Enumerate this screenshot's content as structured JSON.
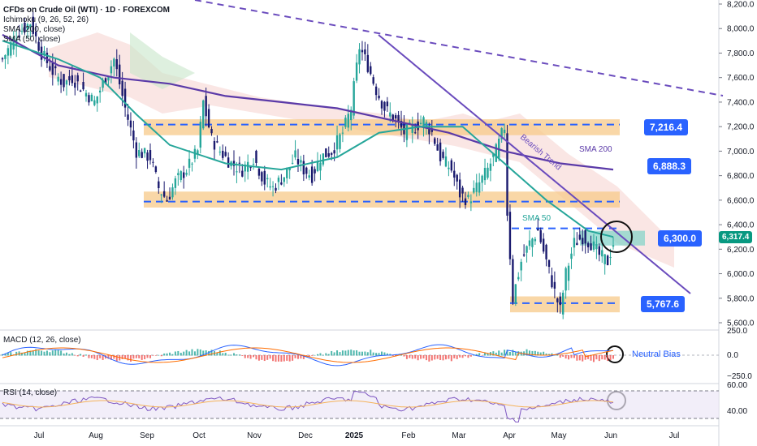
{
  "header": {
    "symbol_line": "CFDs on Crude Oil (WTI) · 1D · FOREXCOM",
    "ichimoku_label": "Ichimoku (9, 26, 52, 26)",
    "sma200_label": "SMA (200, close)",
    "sma50_label": "SMA (50, close)"
  },
  "colors": {
    "bull": "#26a69a",
    "bear": "#1a1a6e",
    "sma50": "#26a69a",
    "sma200": "#5b3aa8",
    "zone": "#f7c98a",
    "zone_dash": "#2962ff",
    "trend": "#6a4bbd",
    "tag_blue": "#2962ff",
    "current_price": "#089981",
    "macd_line": "#2962ff",
    "signal_line": "#ff6d00",
    "rsi_line": "#7e57c2"
  },
  "chart_data": {
    "type": "candlestick",
    "title": "CFDs on Crude Oil (WTI) · 1D · FOREXCOM",
    "y_range": [
      5600,
      8200
    ],
    "y_ticks": [
      "8,200.0",
      "8,000.0",
      "7,800.0",
      "7,600.0",
      "7,400.0",
      "7,200.0",
      "7,000.0",
      "6,800.0",
      "6,600.0",
      "6,400.0",
      "6,200.0",
      "6,000.0",
      "5,800.0",
      "5,600.0"
    ],
    "x_ticks": [
      "Jul",
      "Aug",
      "Sep",
      "Oct",
      "Nov",
      "Dec",
      "2025",
      "Feb",
      "Mar",
      "Apr",
      "May",
      "Jun",
      "Jul"
    ],
    "price_close_path": [
      [
        0,
        7750
      ],
      [
        5,
        7950
      ],
      [
        10,
        8050
      ],
      [
        14,
        7800
      ],
      [
        18,
        7650
      ],
      [
        22,
        7550
      ],
      [
        25,
        7600
      ],
      [
        29,
        7500
      ],
      [
        33,
        7400
      ],
      [
        37,
        7600
      ],
      [
        40,
        7750
      ],
      [
        44,
        7350
      ],
      [
        48,
        7000
      ],
      [
        53,
        6950
      ],
      [
        56,
        6700
      ],
      [
        59,
        6600
      ],
      [
        62,
        6750
      ],
      [
        66,
        6850
      ],
      [
        70,
        7000
      ],
      [
        72,
        7400
      ],
      [
        75,
        7100
      ],
      [
        78,
        7000
      ],
      [
        82,
        6900
      ],
      [
        86,
        6850
      ],
      [
        90,
        6950
      ],
      [
        94,
        6750
      ],
      [
        97,
        6700
      ],
      [
        101,
        6800
      ],
      [
        105,
        6950
      ],
      [
        108,
        6850
      ],
      [
        111,
        6800
      ],
      [
        114,
        6950
      ],
      [
        118,
        7000
      ],
      [
        122,
        7150
      ],
      [
        125,
        7350
      ],
      [
        128,
        7850
      ],
      [
        131,
        7700
      ],
      [
        134,
        7500
      ],
      [
        137,
        7350
      ],
      [
        141,
        7250
      ],
      [
        144,
        7150
      ],
      [
        148,
        7200
      ],
      [
        151,
        7250
      ],
      [
        154,
        7150
      ],
      [
        157,
        6950
      ],
      [
        161,
        6850
      ],
      [
        164,
        6650
      ],
      [
        167,
        6600
      ],
      [
        170,
        6700
      ],
      [
        174,
        6850
      ],
      [
        177,
        7000
      ],
      [
        180,
        7200
      ],
      [
        181,
        6500
      ],
      [
        183,
        5800
      ],
      [
        186,
        6100
      ],
      [
        189,
        6250
      ],
      [
        192,
        6350
      ],
      [
        195,
        6100
      ],
      [
        198,
        5850
      ],
      [
        200,
        5700
      ],
      [
        202,
        6000
      ],
      [
        205,
        6250
      ],
      [
        208,
        6300
      ],
      [
        211,
        6250
      ],
      [
        214,
        6150
      ],
      [
        217,
        6100
      ],
      [
        219,
        6250
      ]
    ],
    "horizontal_levels": [
      {
        "label": "7,216.4",
        "value": 7216.4
      },
      {
        "label": "6,888.3",
        "value": 6888.3
      },
      {
        "label": "6,300.0",
        "value": 6300.0
      },
      {
        "label": "5,767.6",
        "value": 5767.6
      }
    ],
    "current_price": {
      "label": "6,317.4",
      "value": 6317.4
    },
    "annotations": [
      "SMA 200",
      "SMA 50",
      "Bearish Trend"
    ],
    "sma200_path": [
      [
        0,
        7950
      ],
      [
        20,
        7700
      ],
      [
        40,
        7600
      ],
      [
        60,
        7550
      ],
      [
        80,
        7450
      ],
      [
        100,
        7400
      ],
      [
        120,
        7350
      ],
      [
        140,
        7250
      ],
      [
        160,
        7150
      ],
      [
        180,
        7000
      ],
      [
        200,
        6900
      ],
      [
        219,
        6850
      ]
    ],
    "sma50_path": [
      [
        0,
        7900
      ],
      [
        20,
        7750
      ],
      [
        35,
        7600
      ],
      [
        48,
        7300
      ],
      [
        60,
        7050
      ],
      [
        80,
        6900
      ],
      [
        100,
        6850
      ],
      [
        120,
        6950
      ],
      [
        135,
        7150
      ],
      [
        150,
        7200
      ],
      [
        165,
        7200
      ],
      [
        180,
        6900
      ],
      [
        195,
        6600
      ],
      [
        210,
        6350
      ],
      [
        219,
        6300
      ]
    ],
    "macd": {
      "title": "MACD (12, 26, close)",
      "y_ticks": [
        "250.0",
        "0.0",
        "−250.0"
      ],
      "note": "Neutral Bias"
    },
    "rsi": {
      "title": "RSI (14, close)",
      "y_ticks": [
        "60.00",
        "40.00"
      ]
    }
  }
}
